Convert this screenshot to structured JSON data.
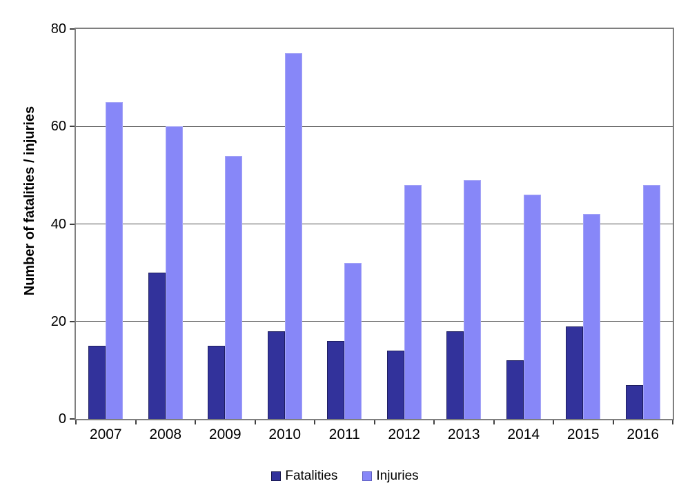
{
  "chart_data": {
    "type": "bar",
    "title": "",
    "xlabel": "",
    "ylabel": "Number of fatalities / injuries",
    "categories": [
      "2007",
      "2008",
      "2009",
      "2010",
      "2011",
      "2012",
      "2013",
      "2014",
      "2015",
      "2016"
    ],
    "series": [
      {
        "name": "Fatalities",
        "color": "#32329B",
        "border_color": "#1E1E60",
        "legend_border_color": "#16164A",
        "values": [
          15,
          30,
          15,
          18,
          16,
          14,
          18,
          12,
          19,
          7
        ]
      },
      {
        "name": "Injuries",
        "color": "#8787F8",
        "border_color": "#A5A5F6",
        "legend_border_color": "#5D5DC0",
        "values": [
          65,
          60,
          54,
          75,
          32,
          48,
          49,
          46,
          42,
          48
        ]
      }
    ],
    "ylim": [
      0,
      80
    ],
    "ytick_interval": 20,
    "yticks": [
      0,
      20,
      40,
      60,
      80
    ],
    "grid": true,
    "legend_position": "bottom",
    "colors": {
      "gridline": "#4d4d4d",
      "plot_border": "#7f7f7f",
      "tick": "#404040",
      "text": "#000000",
      "background": "#ffffff"
    }
  }
}
